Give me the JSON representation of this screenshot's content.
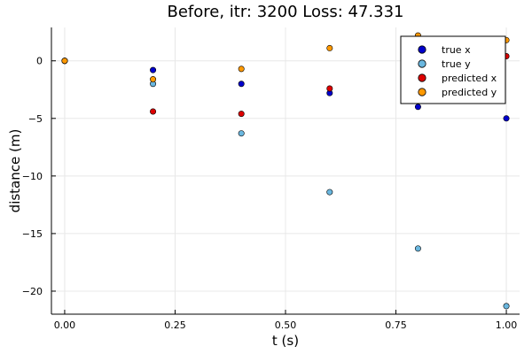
{
  "chart_data": {
    "type": "scatter",
    "title": "Before, itr: 3200 Loss: 47.331",
    "xlabel": "t (s)",
    "ylabel": "distance (m)",
    "xlim": [
      -0.03,
      1.03
    ],
    "ylim": [
      -22.0,
      2.9
    ],
    "xticks": [
      0.0,
      0.25,
      0.5,
      0.75,
      1.0
    ],
    "xtick_labels": [
      "0.00",
      "0.25",
      "0.50",
      "0.75",
      "1.00"
    ],
    "yticks": [
      -20,
      -15,
      -10,
      -5,
      0
    ],
    "ytick_labels": [
      "−20",
      "−15",
      "−10",
      "−5",
      "0"
    ],
    "grid": true,
    "legend_position": "top-right",
    "series": [
      {
        "name": "true x",
        "color": "#0000cc",
        "x": [
          0.0,
          0.2,
          0.4,
          0.6,
          0.8,
          1.0
        ],
        "y": [
          0.0,
          -0.8,
          -2.0,
          -2.8,
          -4.0,
          -5.0
        ]
      },
      {
        "name": "true y",
        "color": "#6ab7df",
        "x": [
          0.0,
          0.2,
          0.4,
          0.6,
          0.8,
          1.0
        ],
        "y": [
          0.0,
          -2.0,
          -6.3,
          -11.4,
          -16.3,
          -21.3
        ]
      },
      {
        "name": "predicted x",
        "color": "#dd0000",
        "x": [
          0.0,
          0.2,
          0.4,
          0.6,
          0.8,
          1.0
        ],
        "y": [
          0.0,
          -4.4,
          -4.6,
          -2.4,
          1.8,
          0.4
        ]
      },
      {
        "name": "predicted y",
        "color": "#ff9900",
        "x": [
          0.0,
          0.2,
          0.4,
          0.6,
          0.8,
          1.0
        ],
        "y": [
          0.0,
          -1.6,
          -0.7,
          1.1,
          2.2,
          1.8
        ]
      }
    ]
  }
}
